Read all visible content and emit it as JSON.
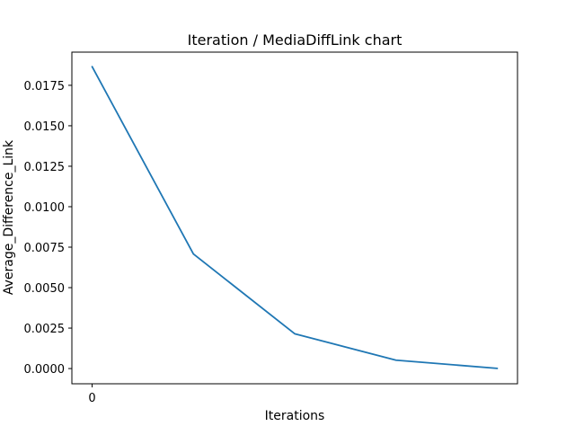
{
  "chart_data": {
    "type": "line",
    "title": "Iteration / MediaDiffLink chart",
    "xlabel": "Iterations",
    "ylabel": "Average_Difference_Link",
    "xlim": [
      -0.2,
      4.2
    ],
    "ylim": [
      -0.00094,
      0.01955
    ],
    "x_ticks": [
      {
        "value": 0,
        "label": "0"
      }
    ],
    "y_ticks": [
      {
        "value": 0.0,
        "label": "0.0000"
      },
      {
        "value": 0.0025,
        "label": "0.0025"
      },
      {
        "value": 0.005,
        "label": "0.0050"
      },
      {
        "value": 0.0075,
        "label": "0.0075"
      },
      {
        "value": 0.01,
        "label": "0.0100"
      },
      {
        "value": 0.0125,
        "label": "0.0125"
      },
      {
        "value": 0.015,
        "label": "0.0150"
      },
      {
        "value": 0.0175,
        "label": "0.0175"
      }
    ],
    "grid": false,
    "series": [
      {
        "color": "#1f77b4",
        "x": [
          0,
          1,
          2,
          3,
          4
        ],
        "values": [
          0.01865,
          0.00708,
          0.00215,
          0.00052,
          1e-05
        ]
      }
    ]
  }
}
